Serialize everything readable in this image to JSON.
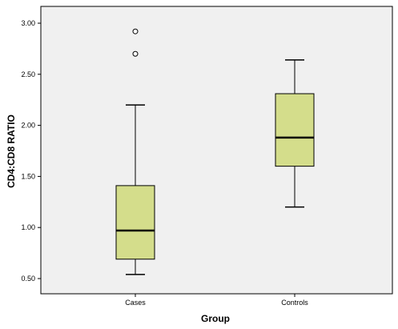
{
  "chart_data": {
    "type": "boxplot",
    "xlabel": "Group",
    "ylabel": "CD4:CD8 RATIO",
    "ylim": [
      0.45,
      3.1
    ],
    "yticks": [
      0.5,
      1.0,
      1.5,
      2.0,
      2.5,
      3.0
    ],
    "ytick_labels": [
      "0.50",
      "1.00",
      "1.50",
      "2.00",
      "2.50",
      "3.00"
    ],
    "categories": [
      "Cases",
      "Controls"
    ],
    "boxes": [
      {
        "category": "Cases",
        "whisker_low": 0.54,
        "q1": 0.69,
        "median": 0.97,
        "q3": 1.41,
        "whisker_high": 2.2,
        "outliers": [
          2.7,
          2.92
        ]
      },
      {
        "category": "Controls",
        "whisker_low": 1.2,
        "q1": 1.6,
        "median": 1.88,
        "q3": 2.31,
        "whisker_high": 2.64,
        "outliers": []
      }
    ],
    "colors": {
      "box_fill": "#d4dd8b",
      "plot_background": "#f0f0f0",
      "line": "#000000"
    },
    "grid": false
  }
}
